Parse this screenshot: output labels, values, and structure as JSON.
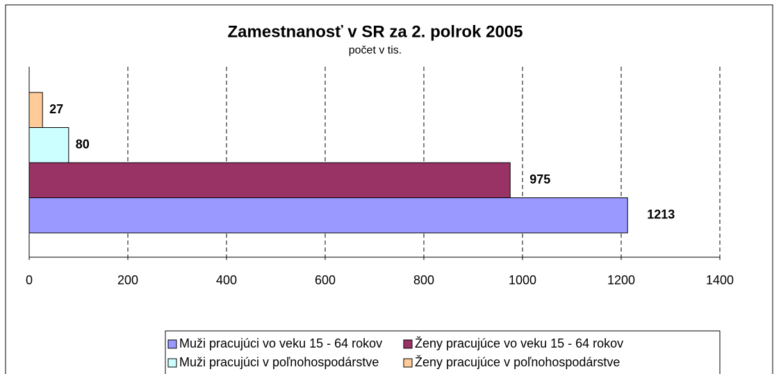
{
  "chart_data": {
    "type": "bar",
    "orientation": "horizontal",
    "title": "Zamestnanosť v SR za 2. polrok 2005",
    "subtitle": "počet v tis.",
    "categories": [
      null
    ],
    "series": [
      {
        "name": "Muži pracujúci vo veku 15 - 64 rokov",
        "color": "#9999ff",
        "values": [
          1213
        ]
      },
      {
        "name": "Ženy pracujúce vo veku 15 - 64 rokov",
        "color": "#993366",
        "values": [
          975
        ]
      },
      {
        "name": "Muži pracujúci v poľnohospodárstve",
        "color": "#ccffff",
        "values": [
          80
        ]
      },
      {
        "name": "Ženy pracujúce v poľnohospodárstve",
        "color": "#ffcc99",
        "values": [
          27
        ]
      }
    ],
    "xlim": [
      0,
      1400
    ],
    "xticks": [
      0,
      200,
      400,
      600,
      800,
      1000,
      1200,
      1400
    ],
    "grid": true,
    "legend": "bottom"
  }
}
